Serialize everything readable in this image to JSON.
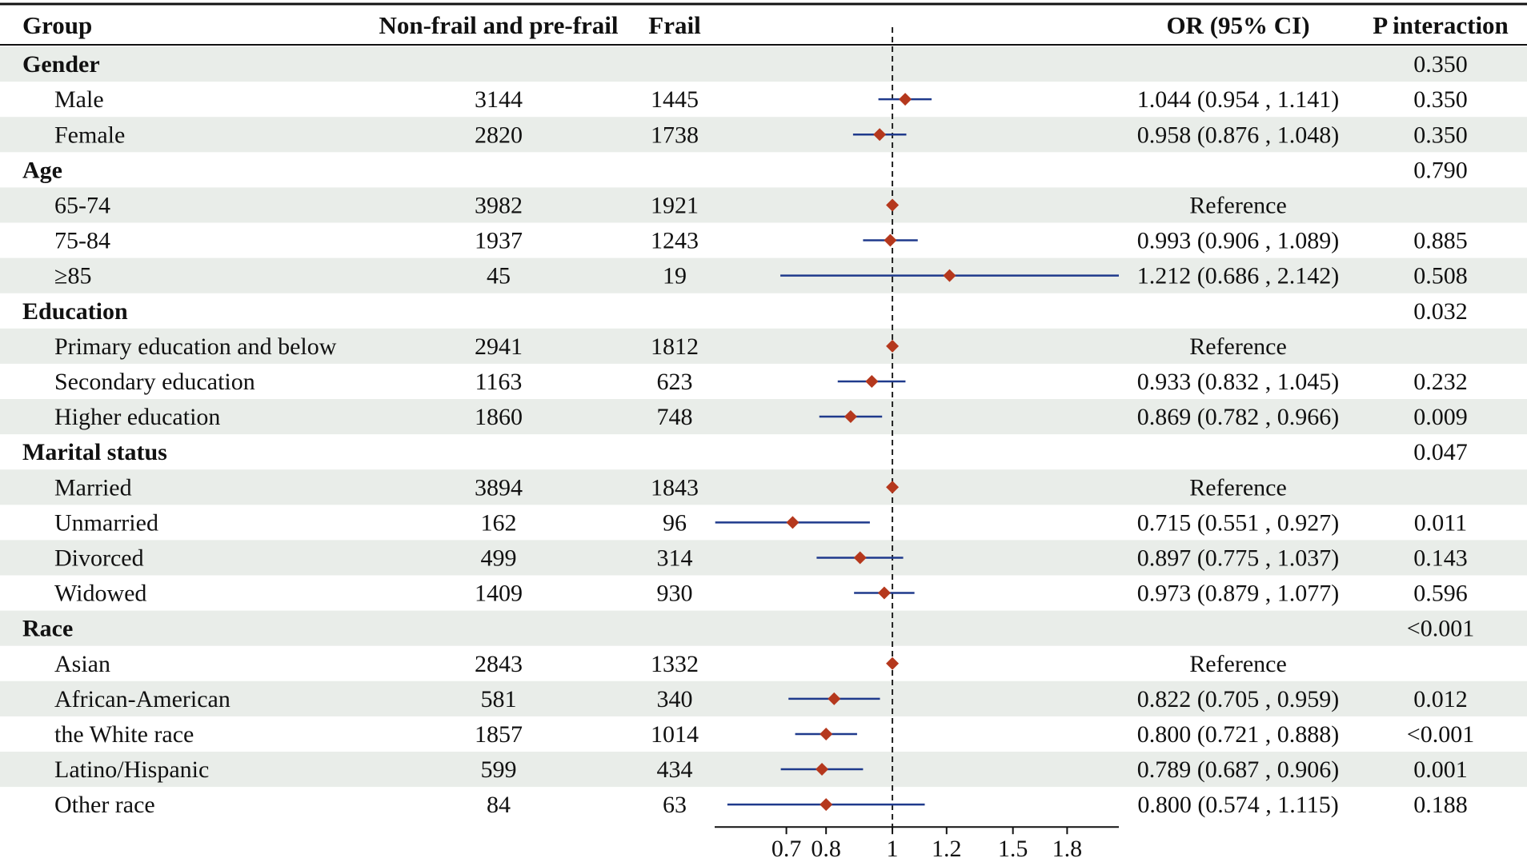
{
  "columns": {
    "group": "Group",
    "nonfrail": "Non-frail and pre-frail",
    "frail": "Frail",
    "or": "OR (95% CI)",
    "p": "P interaction"
  },
  "colors": {
    "band": "#e9ede9",
    "point": "#b5381d",
    "ci": "#1f3a8c",
    "refline": "#222222"
  },
  "rows": [
    {
      "type": "group",
      "label": "Gender",
      "p": "0.350"
    },
    {
      "type": "item",
      "label": "Male",
      "n1": "3144",
      "n2": "1445",
      "or": 1.044,
      "lo": 0.954,
      "hi": 1.141,
      "text": "1.044 (0.954 , 1.141)",
      "p": "0.350"
    },
    {
      "type": "item",
      "label": "Female",
      "n1": "2820",
      "n2": "1738",
      "or": 0.958,
      "lo": 0.876,
      "hi": 1.048,
      "text": "0.958 (0.876 , 1.048)",
      "p": "0.350"
    },
    {
      "type": "group",
      "label": "Age",
      "p": "0.790"
    },
    {
      "type": "item",
      "label": "65-74",
      "n1": "3982",
      "n2": "1921",
      "or": 1.0,
      "lo": null,
      "hi": null,
      "text": "Reference",
      "p": ""
    },
    {
      "type": "item",
      "label": "75-84",
      "n1": "1937",
      "n2": "1243",
      "or": 0.993,
      "lo": 0.906,
      "hi": 1.089,
      "text": "0.993 (0.906 , 1.089)",
      "p": "0.885"
    },
    {
      "type": "item",
      "label": "≥85",
      "n1": "45",
      "n2": "19",
      "or": 1.212,
      "lo": 0.686,
      "hi": 2.142,
      "text": "1.212 (0.686 , 2.142)",
      "p": "0.508"
    },
    {
      "type": "group",
      "label": "Education",
      "p": "0.032"
    },
    {
      "type": "item",
      "label": "Primary education and below",
      "n1": "2941",
      "n2": "1812",
      "or": 1.0,
      "lo": null,
      "hi": null,
      "text": "Reference",
      "p": ""
    },
    {
      "type": "item",
      "label": "Secondary education",
      "n1": "1163",
      "n2": "623",
      "or": 0.933,
      "lo": 0.832,
      "hi": 1.045,
      "text": "0.933 (0.832 , 1.045)",
      "p": "0.232"
    },
    {
      "type": "item",
      "label": "Higher education",
      "n1": "1860",
      "n2": "748",
      "or": 0.869,
      "lo": 0.782,
      "hi": 0.966,
      "text": "0.869 (0.782 , 0.966)",
      "p": "0.009"
    },
    {
      "type": "group",
      "label": "Marital status",
      "p": "0.047"
    },
    {
      "type": "item",
      "label": "Married",
      "n1": "3894",
      "n2": "1843",
      "or": 1.0,
      "lo": null,
      "hi": null,
      "text": "Reference",
      "p": ""
    },
    {
      "type": "item",
      "label": "Unmarried",
      "n1": "162",
      "n2": "96",
      "or": 0.715,
      "lo": 0.551,
      "hi": 0.927,
      "text": "0.715 (0.551 , 0.927)",
      "p": "0.011"
    },
    {
      "type": "item",
      "label": "Divorced",
      "n1": "499",
      "n2": "314",
      "or": 0.897,
      "lo": 0.775,
      "hi": 1.037,
      "text": "0.897 (0.775 , 1.037)",
      "p": "0.143"
    },
    {
      "type": "item",
      "label": "Widowed",
      "n1": "1409",
      "n2": "930",
      "or": 0.973,
      "lo": 0.879,
      "hi": 1.077,
      "text": "0.973 (0.879 , 1.077)",
      "p": "0.596"
    },
    {
      "type": "group",
      "label": "Race",
      "p": "<0.001"
    },
    {
      "type": "item",
      "label": "Asian",
      "n1": "2843",
      "n2": "1332",
      "or": 1.0,
      "lo": null,
      "hi": null,
      "text": "Reference",
      "p": ""
    },
    {
      "type": "item",
      "label": "African-American",
      "n1": "581",
      "n2": "340",
      "or": 0.822,
      "lo": 0.705,
      "hi": 0.959,
      "text": "0.822 (0.705 , 0.959)",
      "p": "0.012"
    },
    {
      "type": "item",
      "label": "the White race",
      "n1": "1857",
      "n2": "1014",
      "or": 0.8,
      "lo": 0.721,
      "hi": 0.888,
      "text": "0.800 (0.721 , 0.888)",
      "p": "<0.001"
    },
    {
      "type": "item",
      "label": "Latino/Hispanic",
      "n1": "599",
      "n2": "434",
      "or": 0.789,
      "lo": 0.687,
      "hi": 0.906,
      "text": "0.789 (0.687 , 0.906)",
      "p": "0.001"
    },
    {
      "type": "item",
      "label": "Other race",
      "n1": "84",
      "n2": "63",
      "or": 0.8,
      "lo": 0.574,
      "hi": 1.115,
      "text": "0.800 (0.574 , 1.115)",
      "p": "0.188"
    }
  ],
  "chart_data": {
    "type": "forest",
    "title": "",
    "xlabel": "",
    "ylabel": "",
    "scale": "log",
    "reference_value": 1,
    "xlim": [
      0.55,
      2.142
    ],
    "xticks": [
      0.7,
      0.8,
      1,
      1.2,
      1.5,
      1.8
    ],
    "xtick_labels": [
      "0.7",
      "0.8",
      "1",
      "1.2",
      "1.5",
      "1.8"
    ],
    "series": [
      {
        "name": "OR (95% CI)",
        "categories": [
          "Male",
          "Female",
          "65-74",
          "75-84",
          "≥85",
          "Primary education and below",
          "Secondary education",
          "Higher education",
          "Married",
          "Unmarried",
          "Divorced",
          "Widowed",
          "Asian",
          "African-American",
          "the White race",
          "Latino/Hispanic",
          "Other race"
        ],
        "or": [
          1.044,
          0.958,
          1.0,
          0.993,
          1.212,
          1.0,
          0.933,
          0.869,
          1.0,
          0.715,
          0.897,
          0.973,
          1.0,
          0.822,
          0.8,
          0.789,
          0.8
        ],
        "ci_low": [
          0.954,
          0.876,
          null,
          0.906,
          0.686,
          null,
          0.832,
          0.782,
          null,
          0.551,
          0.775,
          0.879,
          null,
          0.705,
          0.721,
          0.687,
          0.574
        ],
        "ci_high": [
          1.141,
          1.048,
          null,
          1.089,
          2.142,
          null,
          1.045,
          0.966,
          null,
          0.927,
          1.037,
          1.077,
          null,
          0.959,
          0.888,
          0.906,
          1.115
        ]
      }
    ]
  }
}
